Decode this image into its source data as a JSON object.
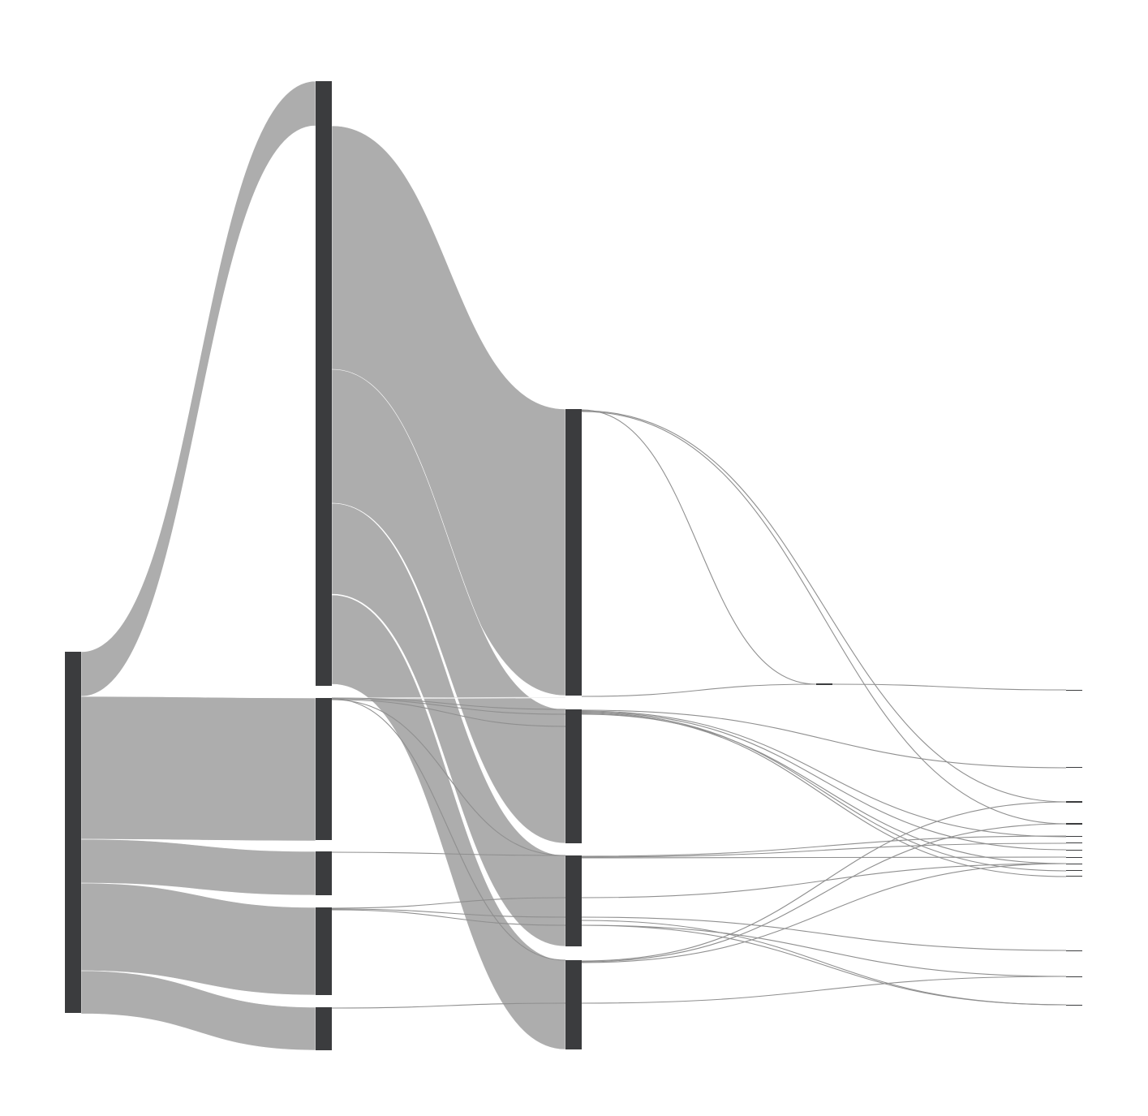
{
  "colors": {
    "node": "#3b3c3e",
    "link_band": "#adadad",
    "link_thin": "#8f8f8f",
    "background": "#ffffff"
  },
  "chart_data": {
    "type": "sankey",
    "columns": 5,
    "nodes": [
      {
        "id": "n0",
        "column": 0
      },
      {
        "id": "n1",
        "column": 1
      },
      {
        "id": "n2",
        "column": 1
      },
      {
        "id": "n3",
        "column": 1
      },
      {
        "id": "n4",
        "column": 1
      },
      {
        "id": "n5",
        "column": 1
      },
      {
        "id": "n6",
        "column": 2
      },
      {
        "id": "n7",
        "column": 2
      },
      {
        "id": "n8",
        "column": 2
      },
      {
        "id": "n9",
        "column": 2
      },
      {
        "id": "n10",
        "column": 3
      },
      {
        "id": "t1",
        "column": 4
      },
      {
        "id": "t2",
        "column": 4
      },
      {
        "id": "t3",
        "column": 4
      },
      {
        "id": "t4",
        "column": 4
      },
      {
        "id": "t5",
        "column": 4
      },
      {
        "id": "t6",
        "column": 4
      },
      {
        "id": "t7",
        "column": 4
      },
      {
        "id": "t8",
        "column": 4
      },
      {
        "id": "t9",
        "column": 4
      },
      {
        "id": "t10",
        "column": 4
      },
      {
        "id": "t11",
        "column": 4
      },
      {
        "id": "t12",
        "column": 4
      },
      {
        "id": "t13",
        "column": 4
      },
      {
        "id": "t14",
        "column": 4
      }
    ],
    "links": [
      {
        "source": "n0",
        "target": "n1",
        "value": 55
      },
      {
        "source": "n0",
        "target": "n2",
        "value": 176
      },
      {
        "source": "n0",
        "target": "n3",
        "value": 54
      },
      {
        "source": "n0",
        "target": "n4",
        "value": 108
      },
      {
        "source": "n0",
        "target": "n5",
        "value": 53
      },
      {
        "source": "n1",
        "target": "n6",
        "value": 353
      },
      {
        "source": "n1",
        "target": "n7",
        "value": 165
      },
      {
        "source": "n1",
        "target": "n8",
        "value": 112
      },
      {
        "source": "n1",
        "target": "n9",
        "value": 110
      },
      {
        "source": "n2",
        "target": "n9",
        "value": 434
      }
    ]
  }
}
